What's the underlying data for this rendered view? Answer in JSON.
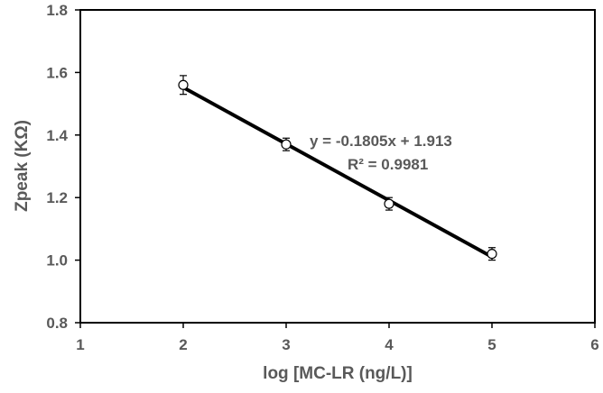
{
  "chart_data": {
    "type": "scatter",
    "title": "",
    "xlabel": "log [MC-LR (ng/L)]",
    "ylabel": "Zpeak (KΩ)",
    "xlim": [
      1,
      6
    ],
    "ylim": [
      0.8,
      1.8
    ],
    "xticks": [
      "1",
      "2",
      "3",
      "4",
      "5",
      "6"
    ],
    "yticks": [
      "0.8",
      "1.0",
      "1.2",
      "1.4",
      "1.6",
      "1.8"
    ],
    "grid": false,
    "legend": "none",
    "series": [
      {
        "x": [
          2,
          3,
          4,
          5
        ],
        "y": [
          1.56,
          1.37,
          1.18,
          1.02
        ],
        "error": [
          0.03,
          0.02,
          0.02,
          0.02
        ],
        "marker": "open-circle"
      }
    ],
    "trendline": {
      "slope": -0.1805,
      "intercept": 1.913,
      "x_range": [
        2,
        5
      ]
    },
    "annotations": {
      "equation": "y = -0.1805x + 1.913",
      "r_squared": "R² = 0.9981"
    }
  }
}
